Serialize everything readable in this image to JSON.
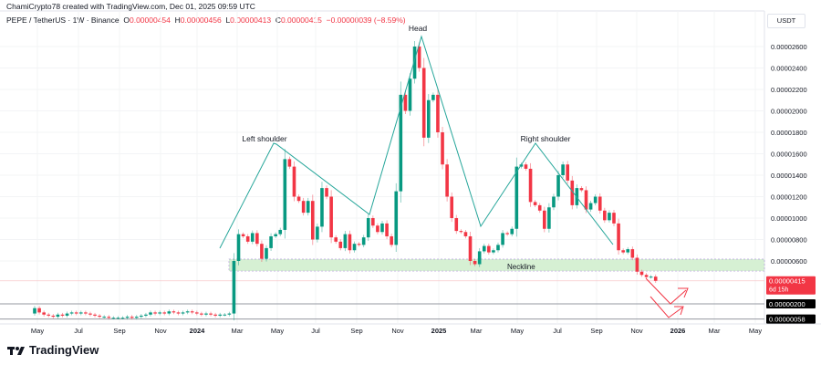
{
  "credit": "ChamiCrypto78 created with TradingView.com, Dec 01, 2025 09:59 UTC",
  "legend": {
    "symbol": "PEPE / TetherUS · 1W · Binance",
    "o_label": "O",
    "o": "0.00000454",
    "h_label": "H",
    "h": "0.00000456",
    "l_label": "L",
    "l": "0.00000413",
    "c_label": "C",
    "c": "0.00000415",
    "change": "−0.00000039 (−8.59%)"
  },
  "currency": "USDT",
  "brand": "TradingView",
  "colors": {
    "up": "#089981",
    "down": "#f23645",
    "pattern": "#26a69a",
    "zone": "#d6f0d3",
    "arrow": "#f23645"
  },
  "price_ticks": [
    "0.00002600",
    "0.00002400",
    "0.00002200",
    "0.00002000",
    "0.00001800",
    "0.00001600",
    "0.00001400",
    "0.00001200",
    "0.00001000",
    "0.00000800",
    "0.00000600"
  ],
  "price_tick_values": [
    26,
    24,
    22,
    20,
    18,
    16,
    14,
    12,
    10,
    8,
    6
  ],
  "price_unit": "1e-6 USDT",
  "time_ticks": [
    "May",
    "Jul",
    "Sep",
    "Nov",
    "2024",
    "Mar",
    "May",
    "Jul",
    "Sep",
    "Nov",
    "2025",
    "Mar",
    "May",
    "Jul",
    "Sep",
    "Nov",
    "2026",
    "Mar",
    "May"
  ],
  "current_price": {
    "label": "0.00000415",
    "countdown": "6d 15h",
    "value": 4.15
  },
  "levels": [
    {
      "label": "0.00000200",
      "value": 2.0
    },
    {
      "label": "0.00000058",
      "value": 0.58
    }
  ],
  "neckline_zone": {
    "label": "Neckline",
    "from": 5.06,
    "to": 6.17
  },
  "annotations": {
    "left": "Left shoulder",
    "head": "Head",
    "right": "Right shoulder"
  },
  "chart_data": {
    "type": "candlestick",
    "interval": "1W",
    "first_open": 1.1,
    "closes": [
      1.6,
      1.2,
      1.0,
      0.9,
      0.8,
      1.0,
      0.9,
      1.1,
      1.2,
      1.1,
      1.2,
      1.1,
      1.0,
      0.9,
      0.8,
      0.8,
      0.7,
      0.7,
      0.7,
      0.7,
      0.8,
      0.7,
      0.8,
      0.9,
      1.0,
      1.2,
      1.1,
      1.2,
      1.1,
      1.3,
      1.2,
      1.1,
      1.2,
      1.3,
      1.2,
      1.1,
      1.0,
      1.1,
      1.0,
      0.9,
      1.0,
      1.0,
      1.1,
      6.0,
      8.5,
      8.3,
      7.8,
      8.6,
      7.6,
      6.2,
      7.2,
      8.3,
      8.5,
      8.9,
      15.5,
      14.8,
      12.0,
      11.6,
      10.5,
      11.6,
      8.0,
      9.2,
      12.8,
      12.0,
      8.2,
      7.8,
      7.2,
      8.5,
      7.0,
      7.6,
      7.5,
      8.2,
      10.0,
      9.3,
      8.7,
      9.5,
      8.3,
      7.5,
      12.5,
      21.5,
      20.0,
      23.0,
      26.0,
      24.0,
      17.5,
      21.0,
      21.5,
      18.0,
      15.0,
      12.0,
      10.0,
      8.8,
      8.7,
      8.3,
      6.0,
      5.7,
      6.9,
      7.4,
      6.8,
      7.0,
      7.5,
      8.6,
      8.5,
      9.0,
      14.8,
      15.0,
      14.6,
      11.5,
      11.2,
      10.7,
      9.0,
      11.0,
      12.0,
      14.0,
      15.0,
      13.5,
      11.2,
      12.8,
      12.6,
      10.8,
      11.4,
      12.0,
      10.7,
      9.8,
      10.5,
      9.5,
      7.0,
      6.8,
      7.1,
      6.3,
      5.0,
      4.7,
      4.5,
      4.54,
      4.15
    ],
    "ylim": [
      0,
      27.5
    ]
  }
}
